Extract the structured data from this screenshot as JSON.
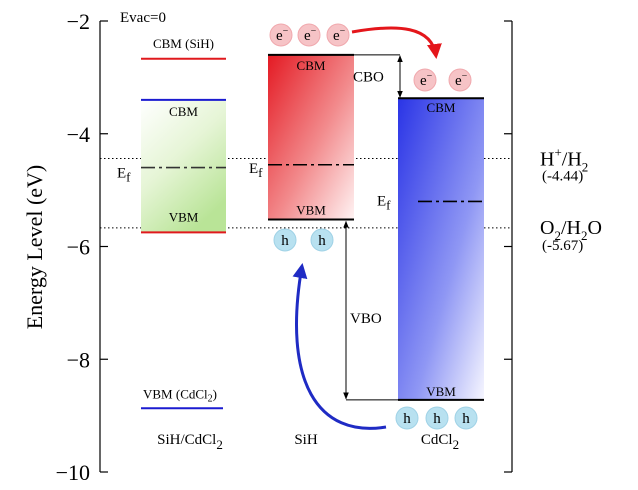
{
  "axis": {
    "ylabel": "Energy Level (eV)",
    "ylim": [
      -10,
      -2
    ],
    "ticks": [
      {
        "value": -2,
        "label": "−2"
      },
      {
        "value": -4,
        "label": "−4"
      },
      {
        "value": -6,
        "label": "−6"
      },
      {
        "value": -8,
        "label": "−8"
      },
      {
        "value": -10,
        "label": "−10"
      }
    ]
  },
  "evac_label": "Evac=0",
  "panels": {
    "hetero": {
      "name_main": "SiH/CdCl",
      "name_sub": "2",
      "cbm_sih_main": "CBM (SiH)",
      "vbm_cdcl2_main": "VBM (CdCl",
      "vbm_cdcl2_sub": "2",
      "vbm_cdcl2_end": ")",
      "cbm_label": "CBM",
      "vbm_label": "VBM",
      "ef_main": "E",
      "ef_sub": "f",
      "cbm_sih_value": -2.67,
      "cbm": -3.4,
      "vbm": -5.75,
      "ef": -4.6,
      "vbm_cdcl2_value": -8.87
    },
    "sih": {
      "name": "SiH",
      "cbm_label": "CBM",
      "vbm_label": "VBM",
      "ef_main": "E",
      "ef_sub": "f",
      "cbm": -2.6,
      "vbm": -5.52,
      "ef": -4.55
    },
    "cdcl2": {
      "name_main": "CdCl",
      "name_sub": "2",
      "cbm_label": "CBM",
      "vbm_label": "VBM",
      "ef_main": "E",
      "ef_sub": "f",
      "cbm": -3.37,
      "vbm": -8.72,
      "ef": -5.2
    }
  },
  "offsets": {
    "cbo": "CBO",
    "vbo": "VBO"
  },
  "redox": {
    "h_main": "H",
    "h_sup": "+",
    "h_mid": "/H",
    "h_sub": "2",
    "h_value": -4.44,
    "h_value_label": "(-4.44)",
    "o_main": "O",
    "o_sub1": "2",
    "o_mid": "/H",
    "o_sub2": "2",
    "o_end": "O",
    "o_value": -5.67,
    "o_value_label": "(-5.67)"
  },
  "carriers": {
    "electron_main": "e",
    "electron_sup": "−",
    "hole": "h"
  },
  "colors": {
    "cbm_line": "#e0191d",
    "vbm_line": "#1b1bd0",
    "arrow_red": "#e4161b",
    "arrow_blue": "#1f2bc4",
    "electron_fill": "#f6c3c6",
    "hole_fill": "#b8e1f0"
  }
}
